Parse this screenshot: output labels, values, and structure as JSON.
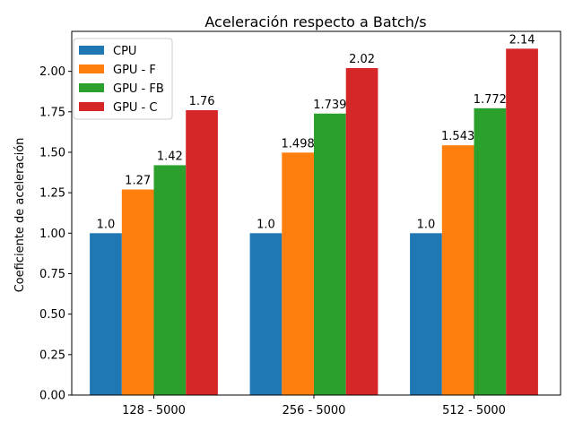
{
  "chart_data": {
    "type": "bar",
    "title": "Aceleración respecto a Batch/s",
    "xlabel": "",
    "ylabel": "Coeficiente de aceleración",
    "categories": [
      "128 - 5000",
      "256 - 5000",
      "512 - 5000"
    ],
    "series": [
      {
        "name": "CPU",
        "color": "#1f77b4",
        "values": [
          1.0,
          1.0,
          1.0
        ],
        "labels": [
          "1.0",
          "1.0",
          "1.0"
        ]
      },
      {
        "name": "GPU - F",
        "color": "#ff7f0e",
        "values": [
          1.27,
          1.498,
          1.543
        ],
        "labels": [
          "1.27",
          "1.498",
          "1.543"
        ]
      },
      {
        "name": "GPU - FB",
        "color": "#2ca02c",
        "values": [
          1.42,
          1.739,
          1.772
        ],
        "labels": [
          "1.42",
          "1.739",
          "1.772"
        ]
      },
      {
        "name": "GPU - C",
        "color": "#d62728",
        "values": [
          1.76,
          2.02,
          2.14
        ],
        "labels": [
          "1.76",
          "2.02",
          "2.14"
        ]
      }
    ],
    "ylim": [
      0,
      2.247
    ],
    "yticks": [
      "0.00",
      "0.25",
      "0.50",
      "0.75",
      "1.00",
      "1.25",
      "1.50",
      "1.75",
      "2.00"
    ],
    "grid": false,
    "legend_position": "top-left"
  }
}
